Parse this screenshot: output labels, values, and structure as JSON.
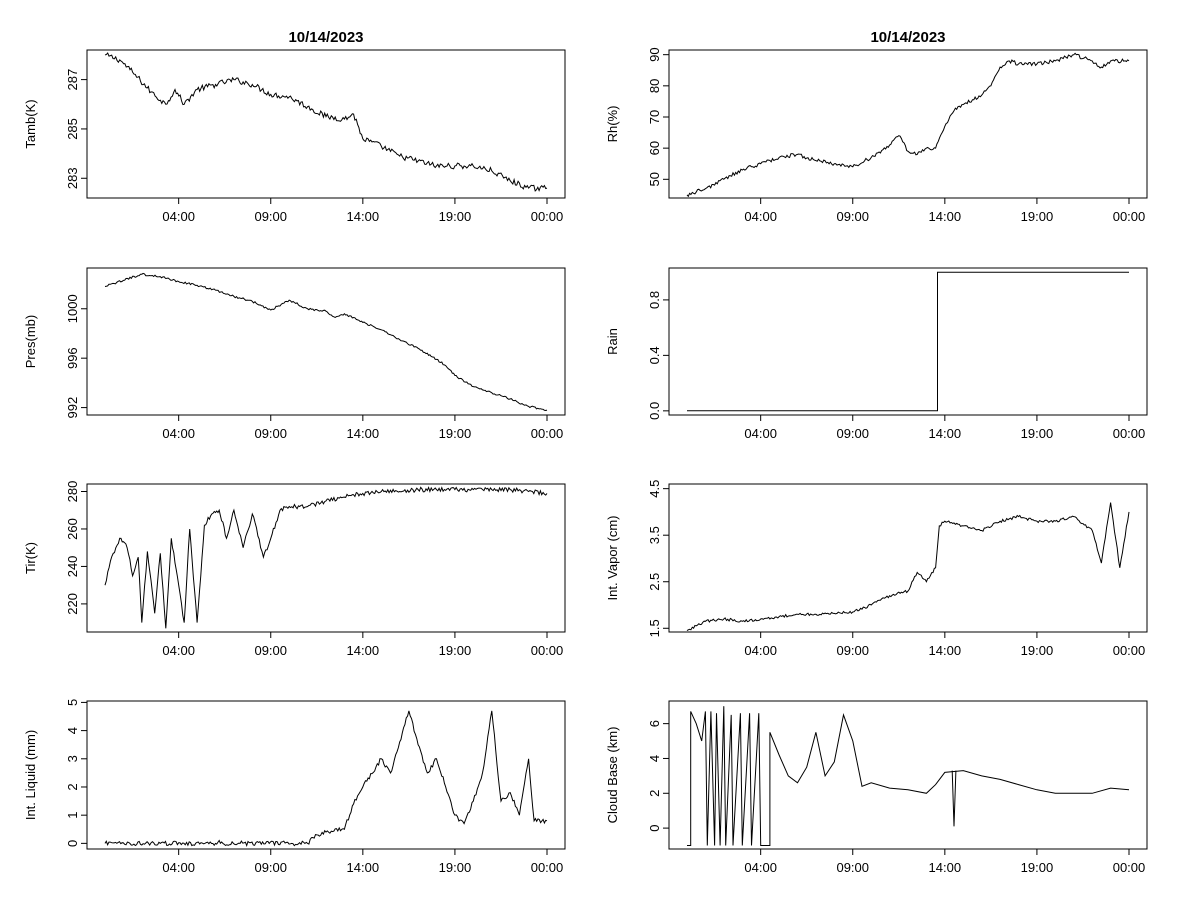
{
  "page": {
    "title_left": "10/14/2023",
    "title_right": "10/14/2023"
  },
  "x_ticks": [
    "04:00",
    "09:00",
    "14:00",
    "19:00",
    "00:00"
  ],
  "chart_data": [
    {
      "type": "line",
      "ylabel": "Tamb(K)",
      "xlim": [
        0,
        24
      ],
      "ylim": [
        282.2,
        288.2
      ],
      "yticks": [
        283,
        285,
        287
      ],
      "ytick_labels": [
        "283",
        "285",
        "287"
      ],
      "series": [
        {
          "noise": 0.12,
          "points": [
            [
              0,
              288.0
            ],
            [
              0.8,
              287.8
            ],
            [
              1.5,
              287.3
            ],
            [
              2.5,
              286.5
            ],
            [
              3.3,
              286.0
            ],
            [
              3.8,
              286.6
            ],
            [
              4.3,
              286.0
            ],
            [
              5.0,
              286.6
            ],
            [
              6.0,
              286.8
            ],
            [
              7.0,
              287.0
            ],
            [
              8.0,
              286.8
            ],
            [
              9.0,
              286.4
            ],
            [
              10.0,
              286.3
            ],
            [
              11.0,
              285.9
            ],
            [
              12.0,
              285.5
            ],
            [
              13.0,
              285.4
            ],
            [
              13.5,
              285.6
            ],
            [
              14.0,
              284.6
            ],
            [
              15.0,
              284.3
            ],
            [
              16.0,
              283.9
            ],
            [
              17.0,
              283.7
            ],
            [
              18.0,
              283.5
            ],
            [
              19.0,
              283.5
            ],
            [
              20.0,
              283.5
            ],
            [
              21.0,
              283.3
            ],
            [
              22.0,
              282.9
            ],
            [
              23.0,
              282.6
            ],
            [
              24.0,
              282.6
            ]
          ]
        }
      ]
    },
    {
      "type": "line",
      "ylabel": "Rh(%)",
      "xlim": [
        0,
        24
      ],
      "ylim": [
        44,
        91.5
      ],
      "yticks": [
        50,
        60,
        70,
        80,
        90
      ],
      "ytick_labels": [
        "50",
        "60",
        "70",
        "80",
        "90"
      ],
      "series": [
        {
          "noise": 0.6,
          "points": [
            [
              0,
              45
            ],
            [
              1,
              47
            ],
            [
              2,
              50
            ],
            [
              3,
              53
            ],
            [
              3.5,
              54
            ],
            [
              4,
              55
            ],
            [
              5,
              57
            ],
            [
              6,
              58
            ],
            [
              7,
              56
            ],
            [
              8,
              55
            ],
            [
              9,
              54
            ],
            [
              10,
              57
            ],
            [
              11,
              61
            ],
            [
              11.5,
              64
            ],
            [
              12,
              59
            ],
            [
              12.5,
              58
            ],
            [
              13,
              60
            ],
            [
              13.5,
              60
            ],
            [
              14,
              67
            ],
            [
              14.5,
              72
            ],
            [
              15,
              74
            ],
            [
              16,
              77
            ],
            [
              16.5,
              80
            ],
            [
              17,
              86
            ],
            [
              17.5,
              88
            ],
            [
              18,
              87
            ],
            [
              19,
              87
            ],
            [
              20,
              88
            ],
            [
              21,
              90
            ],
            [
              22,
              88
            ],
            [
              22.5,
              86
            ],
            [
              23,
              88
            ],
            [
              24,
              88
            ]
          ]
        }
      ]
    },
    {
      "type": "line",
      "ylabel": "Pres(mb)",
      "xlim": [
        0,
        24
      ],
      "ylim": [
        991.4,
        1003.3
      ],
      "yticks": [
        992,
        996,
        1000
      ],
      "ytick_labels": [
        "992",
        "996",
        "1000"
      ],
      "series": [
        {
          "noise": 0.08,
          "points": [
            [
              0,
              1001.8
            ],
            [
              1,
              1002.3
            ],
            [
              2,
              1002.8
            ],
            [
              3,
              1002.6
            ],
            [
              4,
              1002.2
            ],
            [
              5,
              1001.9
            ],
            [
              6,
              1001.5
            ],
            [
              7,
              1001.0
            ],
            [
              8,
              1000.6
            ],
            [
              9,
              999.9
            ],
            [
              10,
              1000.7
            ],
            [
              11,
              1000.0
            ],
            [
              12,
              999.8
            ],
            [
              12.5,
              999.3
            ],
            [
              13,
              999.6
            ],
            [
              14,
              998.9
            ],
            [
              15,
              998.3
            ],
            [
              16,
              997.5
            ],
            [
              17,
              996.8
            ],
            [
              18,
              995.9
            ],
            [
              18.5,
              995.4
            ],
            [
              19,
              994.6
            ],
            [
              20,
              993.7
            ],
            [
              21,
              993.2
            ],
            [
              22,
              992.7
            ],
            [
              23,
              992.1
            ],
            [
              24,
              991.8
            ]
          ]
        }
      ]
    },
    {
      "type": "step",
      "ylabel": "Rain",
      "xlim": [
        0,
        24
      ],
      "ylim": [
        -0.03,
        1.03
      ],
      "yticks": [
        0,
        0.4,
        0.8
      ],
      "ytick_labels": [
        "0.0",
        "0.4",
        "0.8"
      ],
      "series": [
        {
          "noise": 0,
          "points": [
            [
              0,
              0
            ],
            [
              13.6,
              0
            ],
            [
              13.6,
              1
            ],
            [
              24,
              1
            ]
          ]
        }
      ]
    },
    {
      "type": "line",
      "ylabel": "Tir(K)",
      "xlim": [
        0,
        24
      ],
      "ylim": [
        205,
        284
      ],
      "yticks": [
        220,
        240,
        260,
        280
      ],
      "ytick_labels": [
        "220",
        "240",
        "260",
        "280"
      ],
      "series": [
        {
          "noise": 1.2,
          "points": [
            [
              0,
              230
            ],
            [
              0.3,
              243
            ],
            [
              0.8,
              255
            ],
            [
              1.2,
              250
            ],
            [
              1.5,
              235
            ],
            [
              1.8,
              245
            ],
            [
              2.0,
              210
            ],
            [
              2.3,
              248
            ],
            [
              2.7,
              215
            ],
            [
              3.0,
              247
            ],
            [
              3.3,
              207
            ],
            [
              3.6,
              255
            ],
            [
              4.0,
              230
            ],
            [
              4.3,
              210
            ],
            [
              4.6,
              260
            ],
            [
              5.0,
              210
            ],
            [
              5.4,
              262
            ],
            [
              5.8,
              268
            ],
            [
              6.2,
              270
            ],
            [
              6.6,
              255
            ],
            [
              7.0,
              270
            ],
            [
              7.5,
              250
            ],
            [
              8.0,
              268
            ],
            [
              8.6,
              245
            ],
            [
              9.0,
              255
            ],
            [
              9.5,
              270
            ],
            [
              10.0,
              272
            ],
            [
              11.0,
              272
            ],
            [
              12.0,
              275
            ],
            [
              13.0,
              277
            ],
            [
              14.0,
              279
            ],
            [
              15.0,
              280
            ],
            [
              16.0,
              280
            ],
            [
              17.0,
              281
            ],
            [
              18.0,
              281
            ],
            [
              19.0,
              281
            ],
            [
              20.0,
              281
            ],
            [
              21.0,
              281
            ],
            [
              22.0,
              281
            ],
            [
              23.0,
              280
            ],
            [
              24.0,
              279
            ]
          ]
        }
      ]
    },
    {
      "type": "line",
      "ylabel": "Int. Vapor (cm)",
      "xlim": [
        0,
        24
      ],
      "ylim": [
        1.42,
        4.6
      ],
      "yticks": [
        1.5,
        2.5,
        3.5,
        4.5
      ],
      "ytick_labels": [
        "1.5",
        "2.5",
        "3.5",
        "4.5"
      ],
      "series": [
        {
          "noise": 0.03,
          "points": [
            [
              0,
              1.45
            ],
            [
              1,
              1.65
            ],
            [
              2,
              1.7
            ],
            [
              3,
              1.65
            ],
            [
              4,
              1.7
            ],
            [
              5,
              1.75
            ],
            [
              6,
              1.8
            ],
            [
              7,
              1.8
            ],
            [
              8,
              1.82
            ],
            [
              9,
              1.85
            ],
            [
              10,
              2.0
            ],
            [
              11,
              2.2
            ],
            [
              12,
              2.3
            ],
            [
              12.5,
              2.7
            ],
            [
              13,
              2.5
            ],
            [
              13.5,
              2.8
            ],
            [
              13.7,
              3.7
            ],
            [
              14,
              3.8
            ],
            [
              15,
              3.7
            ],
            [
              16,
              3.6
            ],
            [
              17,
              3.8
            ],
            [
              18,
              3.9
            ],
            [
              19,
              3.8
            ],
            [
              20,
              3.8
            ],
            [
              21,
              3.9
            ],
            [
              22,
              3.6
            ],
            [
              22.5,
              2.9
            ],
            [
              23,
              4.2
            ],
            [
              23.5,
              2.8
            ],
            [
              24,
              4.0
            ]
          ]
        }
      ]
    },
    {
      "type": "line",
      "ylabel": "Int. Liquid (mm)",
      "xlim": [
        0,
        24
      ],
      "ylim": [
        -0.2,
        5.05
      ],
      "yticks": [
        0,
        1,
        2,
        3,
        4,
        5
      ],
      "ytick_labels": [
        "0",
        "1",
        "2",
        "3",
        "4",
        "5"
      ],
      "series": [
        {
          "noise": 0.08,
          "points": [
            [
              0,
              0
            ],
            [
              6,
              0
            ],
            [
              6.2,
              0.1
            ],
            [
              6.4,
              0
            ],
            [
              11,
              0
            ],
            [
              11.5,
              0.3
            ],
            [
              12,
              0.4
            ],
            [
              13,
              0.5
            ],
            [
              13.5,
              1.4
            ],
            [
              14,
              2.0
            ],
            [
              15,
              3.0
            ],
            [
              15.5,
              2.5
            ],
            [
              16,
              3.6
            ],
            [
              16.5,
              4.7
            ],
            [
              17,
              3.5
            ],
            [
              17.5,
              2.5
            ],
            [
              18,
              3.0
            ],
            [
              18.5,
              2.0
            ],
            [
              19,
              1.0
            ],
            [
              19.5,
              0.7
            ],
            [
              20,
              1.5
            ],
            [
              20.5,
              2.5
            ],
            [
              21,
              4.7
            ],
            [
              21.5,
              1.5
            ],
            [
              22,
              1.8
            ],
            [
              22.5,
              1.0
            ],
            [
              23,
              3.0
            ],
            [
              23.3,
              0.8
            ],
            [
              24,
              0.8
            ]
          ]
        }
      ]
    },
    {
      "type": "line",
      "ylabel": "Cloud Base (km)",
      "xlim": [
        0,
        24
      ],
      "ylim": [
        -1.2,
        7.3
      ],
      "yticks": [
        0,
        2,
        4,
        6
      ],
      "ytick_labels": [
        "0",
        "2",
        "4",
        "6"
      ],
      "series": [
        {
          "noise": 0,
          "points": [
            [
              0,
              -1
            ],
            [
              0.2,
              -1
            ],
            [
              0.2,
              6.7
            ],
            [
              0.5,
              6.0
            ],
            [
              0.8,
              5.0
            ],
            [
              1.0,
              6.7
            ],
            [
              1.1,
              -1
            ],
            [
              1.3,
              6.7
            ],
            [
              1.5,
              -1
            ],
            [
              1.6,
              6.6
            ],
            [
              1.8,
              -1
            ],
            [
              2.0,
              7.0
            ],
            [
              2.1,
              -1
            ],
            [
              2.4,
              6.5
            ],
            [
              2.5,
              -1
            ],
            [
              2.9,
              6.6
            ],
            [
              3.0,
              -1
            ],
            [
              3.4,
              6.6
            ],
            [
              3.5,
              -1
            ],
            [
              3.9,
              6.6
            ],
            [
              4.0,
              -1
            ],
            [
              4.5,
              -1
            ],
            [
              4.5,
              5.5
            ],
            [
              5.0,
              4.2
            ],
            [
              5.5,
              3.0
            ],
            [
              6.0,
              2.6
            ],
            [
              6.5,
              3.5
            ],
            [
              7.0,
              5.5
            ],
            [
              7.5,
              3.0
            ],
            [
              8.0,
              3.8
            ],
            [
              8.5,
              6.5
            ],
            [
              9.0,
              5.0
            ],
            [
              9.5,
              2.4
            ],
            [
              10,
              2.6
            ],
            [
              11,
              2.3
            ],
            [
              12,
              2.2
            ],
            [
              13,
              2.0
            ],
            [
              13.5,
              2.5
            ],
            [
              14,
              3.2
            ],
            [
              15,
              3.3
            ],
            [
              16,
              3.0
            ],
            [
              17,
              2.8
            ],
            [
              18,
              2.5
            ],
            [
              19,
              2.2
            ],
            [
              20,
              2.0
            ],
            [
              21,
              2.0
            ],
            [
              22,
              2.0
            ],
            [
              23,
              2.3
            ],
            [
              24,
              2.2
            ]
          ]
        },
        {
          "noise": 0,
          "points": [
            [
              14.4,
              3.3
            ],
            [
              14.5,
              0.1
            ],
            [
              14.6,
              3.3
            ]
          ]
        }
      ]
    }
  ]
}
